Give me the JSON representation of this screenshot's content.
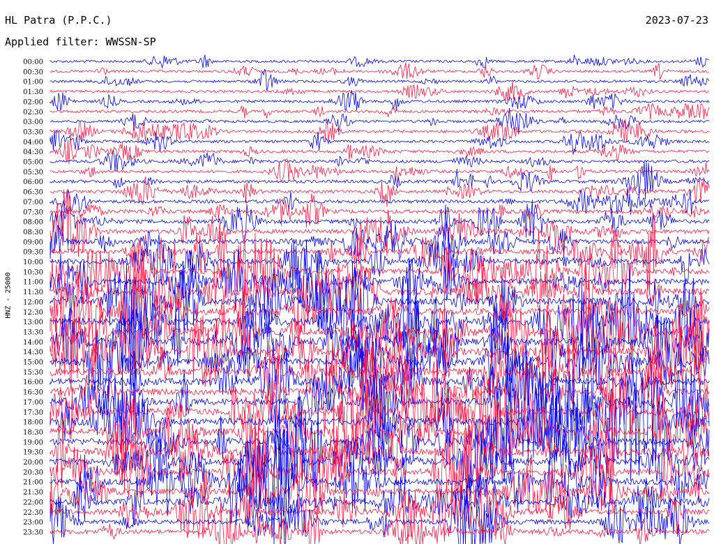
{
  "header": {
    "station": "HL Patra (P.P.C.)",
    "date": "2023-07-23",
    "filter": "Applied filter: WWSSN-SP"
  },
  "chart_data": {
    "type": "line",
    "title": "HL Patra (P.P.C.)",
    "ylabel": "HNZ - 25000",
    "row_labels": [
      "00:00",
      "00:30",
      "01:00",
      "01:30",
      "02:00",
      "02:30",
      "03:00",
      "03:30",
      "04:00",
      "04:30",
      "05:00",
      "05:30",
      "06:00",
      "06:30",
      "07:00",
      "07:30",
      "08:00",
      "08:30",
      "09:00",
      "09:30",
      "10:00",
      "10:30",
      "11:00",
      "11:30",
      "12:00",
      "12:30",
      "13:00",
      "13:30",
      "14:00",
      "14:30",
      "15:00",
      "15:30",
      "16:00",
      "16:30",
      "17:00",
      "17:30",
      "18:00",
      "18:30",
      "19:00",
      "19:30",
      "20:00",
      "20:30",
      "21:00",
      "21:30",
      "22:00",
      "22:30",
      "23:00",
      "23:30"
    ],
    "series_colors": [
      "#0000ee",
      "#ff1744"
    ],
    "relative_amplitude": [
      0.5,
      0.5,
      0.5,
      0.5,
      0.6,
      0.7,
      0.6,
      0.8,
      0.7,
      0.8,
      0.8,
      0.8,
      0.9,
      1.0,
      1.1,
      1.3,
      1.4,
      1.6,
      1.8,
      2.0,
      2.2,
      2.4,
      2.6,
      2.8,
      3.0,
      3.1,
      3.2,
      3.2,
      3.3,
      3.3,
      3.3,
      3.3,
      3.2,
      3.2,
      3.2,
      3.3,
      3.4,
      3.3,
      3.2,
      3.1,
      3.0,
      3.0,
      2.9,
      2.8,
      2.5,
      2.3,
      2.0,
      1.8
    ]
  }
}
